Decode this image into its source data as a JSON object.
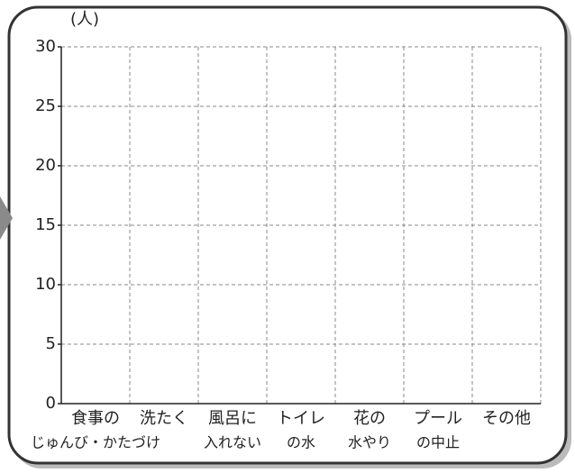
{
  "chart_data": {
    "type": "bar",
    "y_label": "(人)",
    "categories": [
      [
        "食事の",
        "じゅんび・かたづけ"
      ],
      [
        "洗たく"
      ],
      [
        "風呂に",
        "入れない"
      ],
      [
        "トイレ",
        "の水"
      ],
      [
        "花の",
        "水やり"
      ],
      [
        "プール",
        "の中止"
      ],
      [
        "その他"
      ]
    ],
    "ylim": [
      0,
      30
    ],
    "yticks": [
      0,
      5,
      10,
      15,
      20,
      25,
      30
    ],
    "grid": true
  }
}
